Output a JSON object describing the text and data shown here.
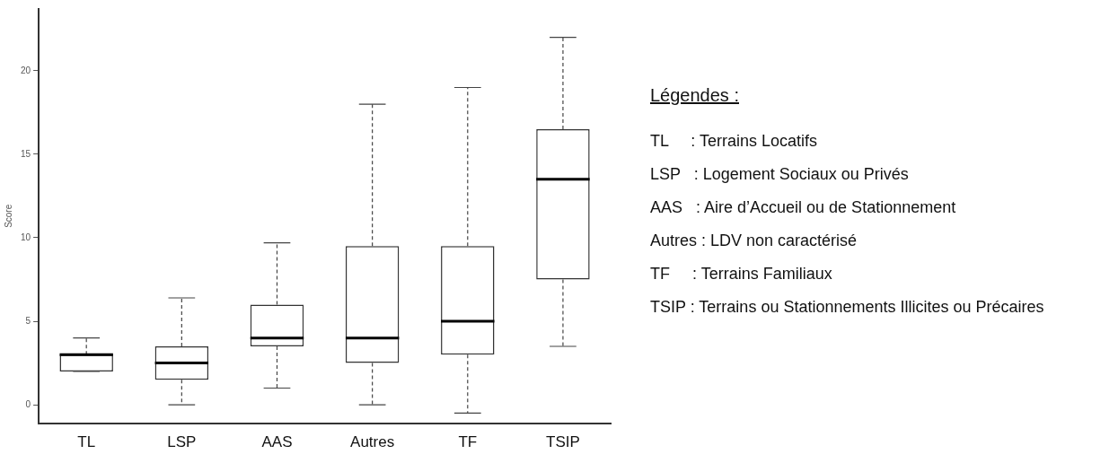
{
  "chart_data": {
    "type": "box",
    "ylabel": "Score",
    "categories": [
      "TL",
      "LSP",
      "AAS",
      "Autres",
      "TF",
      "TSIP"
    ],
    "boxes": [
      {
        "low": 2,
        "q1": 2,
        "median": 3,
        "q3": 3,
        "high": 4
      },
      {
        "low": 0,
        "q1": 1.5,
        "median": 2.5,
        "q3": 3.5,
        "high": 6.4
      },
      {
        "low": 1,
        "q1": 3.5,
        "median": 4,
        "q3": 6,
        "high": 9.7
      },
      {
        "low": 0,
        "q1": 2.5,
        "median": 4,
        "q3": 9.5,
        "high": 18
      },
      {
        "low": -0.5,
        "q1": 3,
        "median": 5,
        "q3": 9.5,
        "high": 19
      },
      {
        "low": 3.5,
        "q1": 7.5,
        "median": 13.5,
        "q3": 16.5,
        "high": 22
      }
    ],
    "ylim": [
      -1.1,
      23.7
    ],
    "yticks": [
      0,
      5,
      10,
      15,
      20
    ],
    "grid": false,
    "legend": false,
    "annotations": [
      "Légendes :",
      "TL     : Terrains Locatifs",
      "LSP   : Logement Sociaux ou Privés",
      "AAS   : Aire d’Accueil ou de Stationnement",
      "Autres : LDV non caractérisé",
      "TF     : Terrains Familiaux",
      "TSIP : Terrains ou Stationnements Illicites ou Précaires"
    ]
  }
}
